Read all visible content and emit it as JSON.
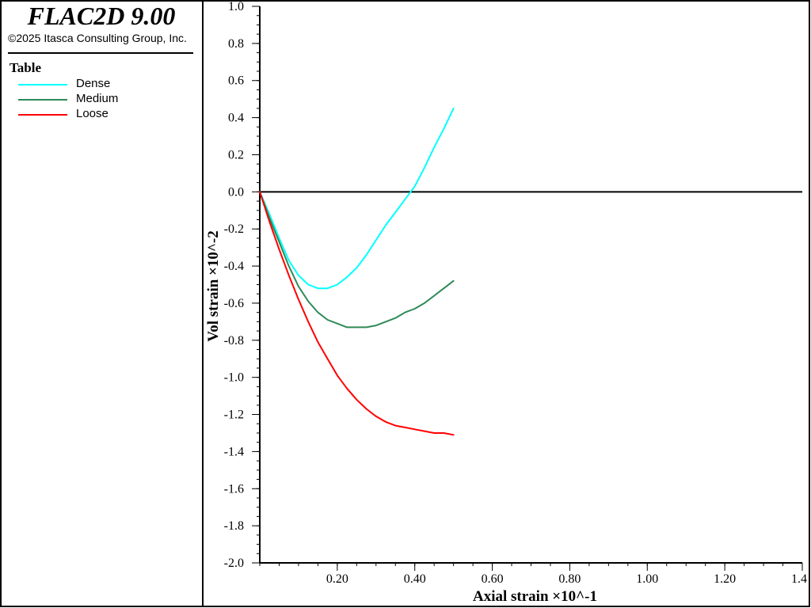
{
  "header": {
    "app_title": "FLAC2D 9.00",
    "copyright": "©2025 Itasca Consulting Group, Inc."
  },
  "legend": {
    "heading": "Table",
    "items": [
      {
        "label": "Dense",
        "color": "#00ffff"
      },
      {
        "label": "Medium",
        "color": "#2e8b57"
      },
      {
        "label": "Loose",
        "color": "#ff0000"
      }
    ]
  },
  "chart_data": {
    "type": "line",
    "xlabel": "Axial strain ×10^-1",
    "ylabel": "Vol strain ×10^-2",
    "xlim": [
      0,
      1.4
    ],
    "ylim": [
      -2.0,
      1.0
    ],
    "x_ticks": [
      "0.20",
      "0.40",
      "0.60",
      "0.80",
      "1.00",
      "1.20",
      "1.4"
    ],
    "y_ticks": [
      "1.0",
      "0.8",
      "0.6",
      "0.4",
      "0.2",
      "0.0",
      "-0.2",
      "-0.4",
      "-0.6",
      "-0.8",
      "-1.0",
      "-1.2",
      "-1.4",
      "-1.6",
      "-1.8",
      "-2.0"
    ],
    "grid": false,
    "zero_line": true,
    "series": [
      {
        "name": "Dense",
        "color": "#00ffff",
        "x": [
          0.0,
          0.025,
          0.05,
          0.075,
          0.1,
          0.125,
          0.15,
          0.175,
          0.2,
          0.225,
          0.25,
          0.275,
          0.3,
          0.325,
          0.35,
          0.375,
          0.4,
          0.425,
          0.45,
          0.475,
          0.5
        ],
        "y": [
          0.0,
          -0.12,
          -0.25,
          -0.37,
          -0.45,
          -0.5,
          -0.52,
          -0.52,
          -0.5,
          -0.46,
          -0.41,
          -0.34,
          -0.26,
          -0.18,
          -0.11,
          -0.04,
          0.03,
          0.13,
          0.24,
          0.34,
          0.45
        ]
      },
      {
        "name": "Medium",
        "color": "#2e8b57",
        "x": [
          0.0,
          0.025,
          0.05,
          0.075,
          0.1,
          0.125,
          0.15,
          0.175,
          0.2,
          0.225,
          0.25,
          0.275,
          0.3,
          0.325,
          0.35,
          0.375,
          0.4,
          0.425,
          0.45,
          0.475,
          0.5
        ],
        "y": [
          0.0,
          -0.14,
          -0.27,
          -0.4,
          -0.51,
          -0.59,
          -0.65,
          -0.69,
          -0.71,
          -0.73,
          -0.73,
          -0.73,
          -0.72,
          -0.7,
          -0.68,
          -0.65,
          -0.63,
          -0.6,
          -0.56,
          -0.52,
          -0.48
        ]
      },
      {
        "name": "Loose",
        "color": "#ff0000",
        "x": [
          0.0,
          0.025,
          0.05,
          0.075,
          0.1,
          0.125,
          0.15,
          0.175,
          0.2,
          0.225,
          0.25,
          0.275,
          0.3,
          0.325,
          0.35,
          0.375,
          0.4,
          0.425,
          0.45,
          0.475,
          0.5
        ],
        "y": [
          0.0,
          -0.16,
          -0.31,
          -0.45,
          -0.58,
          -0.7,
          -0.81,
          -0.9,
          -0.99,
          -1.06,
          -1.12,
          -1.17,
          -1.21,
          -1.24,
          -1.26,
          -1.27,
          -1.28,
          -1.29,
          -1.3,
          -1.3,
          -1.31
        ]
      }
    ]
  }
}
